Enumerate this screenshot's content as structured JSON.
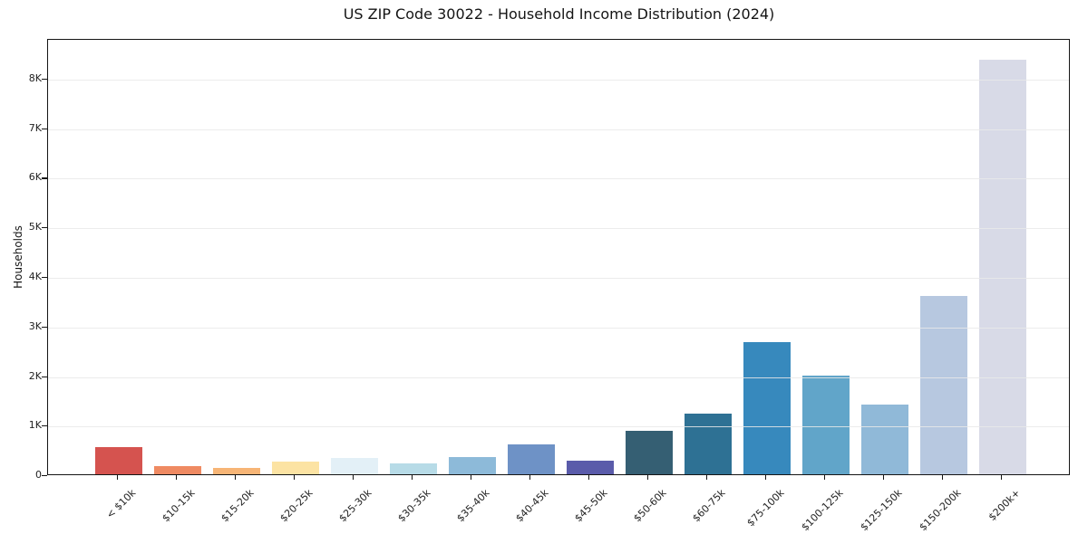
{
  "chart_data": {
    "type": "bar",
    "title": "US ZIP Code 30022 - Household Income Distribution (2024)",
    "xlabel": "",
    "ylabel": "Households",
    "categories": [
      "< $10k",
      "$10-15k",
      "$15-20k",
      "$20-25k",
      "$25-30k",
      "$30-35k",
      "$35-40k",
      "$40-45k",
      "$45-50k",
      "$50-60k",
      "$60-75k",
      "$75-100k",
      "$100-125k",
      "$125-150k",
      "$150-200k",
      "$200k+"
    ],
    "values": [
      540,
      170,
      120,
      260,
      330,
      220,
      350,
      610,
      280,
      870,
      1230,
      2660,
      2000,
      1400,
      3600,
      8360
    ],
    "bar_colors": [
      "#d5534f",
      "#ef8a62",
      "#f7b576",
      "#fce3a3",
      "#e3f0f7",
      "#b7dbe7",
      "#8dbad9",
      "#6e92c6",
      "#5a5baa",
      "#355f73",
      "#2e7194",
      "#3789bd",
      "#61a5c9",
      "#90b9d8",
      "#b7c8e0",
      "#d8dae7"
    ],
    "ylim": [
      0,
      8800
    ],
    "yticks": [
      {
        "value": 0,
        "label": "0"
      },
      {
        "value": 1000,
        "label": "1K"
      },
      {
        "value": 2000,
        "label": "2K"
      },
      {
        "value": 3000,
        "label": "3K"
      },
      {
        "value": 4000,
        "label": "4K"
      },
      {
        "value": 5000,
        "label": "5K"
      },
      {
        "value": 6000,
        "label": "6K"
      },
      {
        "value": 7000,
        "label": "7K"
      },
      {
        "value": 8000,
        "label": "8K"
      }
    ],
    "grid": "horizontal",
    "legend": "none"
  },
  "style": {
    "background": "#ffffff",
    "frame_color": "#151515",
    "grid_color": "#e9e9e9",
    "text_color": "#222222"
  }
}
